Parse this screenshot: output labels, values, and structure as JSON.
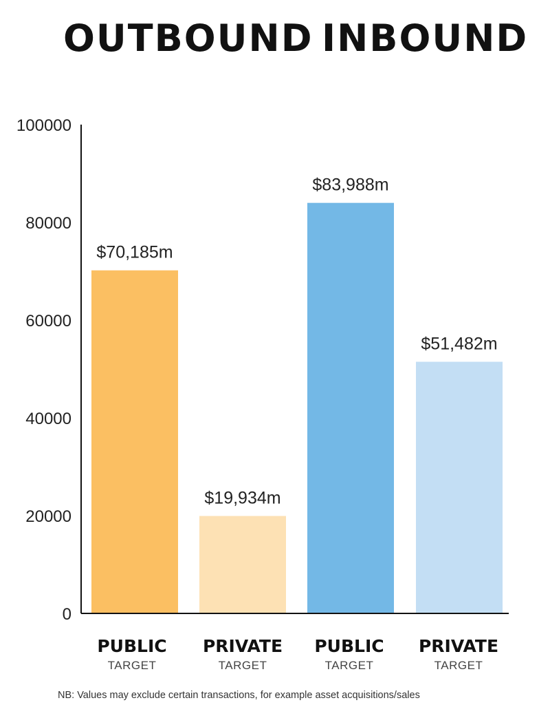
{
  "headings": {
    "left": "OUTBOUND",
    "right": "INBOUND"
  },
  "chart_data": {
    "type": "bar",
    "title": "",
    "xlabel": "",
    "ylabel": "",
    "ylim": [
      0,
      100000
    ],
    "yticks": [
      0,
      20000,
      40000,
      60000,
      80000,
      100000
    ],
    "grid": false,
    "categories": [
      {
        "label": "PUBLIC",
        "sublabel": "TARGET",
        "group": "OUTBOUND"
      },
      {
        "label": "PRIVATE",
        "sublabel": "TARGET",
        "group": "OUTBOUND"
      },
      {
        "label": "PUBLIC",
        "sublabel": "TARGET",
        "group": "INBOUND"
      },
      {
        "label": "PRIVATE",
        "sublabel": "TARGET",
        "group": "INBOUND"
      }
    ],
    "values": [
      70185,
      19934,
      83988,
      51482
    ],
    "data_labels": [
      "$70,185m",
      "$19,934m",
      "$83,988m",
      "$51,482m"
    ],
    "colors": [
      "#fbbf62",
      "#fde1b4",
      "#73b8e6",
      "#c3def4"
    ]
  },
  "footnote": "NB: Values may exclude certain transactions, for example asset acquisitions/sales"
}
